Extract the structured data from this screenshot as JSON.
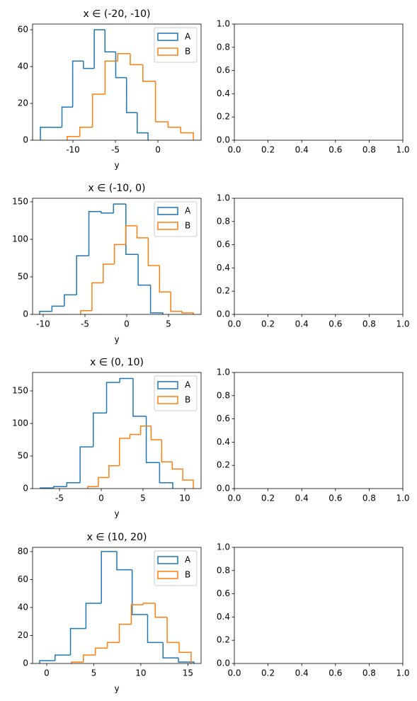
{
  "chart_data": [
    {
      "type": "histogram",
      "title": "x ∈ (-20, -10)",
      "xlabel": "y",
      "legend": "upper right",
      "xlim": [
        -14.75,
        5.08
      ],
      "ylim": [
        0,
        63.08
      ],
      "xticks": [
        -10,
        -5,
        0
      ],
      "yticks": [
        0,
        20,
        40,
        60
      ],
      "series": [
        {
          "name": "A",
          "color": "#1f77b4",
          "bins": [
            -13.83,
            -12.56,
            -11.29,
            -10.03,
            -8.76,
            -7.49,
            -6.23,
            -4.96,
            -3.69,
            -2.43,
            -1.16
          ],
          "values": [
            7,
            7,
            18,
            43,
            39,
            60,
            48,
            34,
            15,
            4
          ]
        },
        {
          "name": "B",
          "color": "#ff7f0e",
          "bins": [
            -10.67,
            -9.19,
            -7.7,
            -6.22,
            -4.73,
            -3.25,
            -1.77,
            -0.28,
            1.2,
            2.69,
            4.17
          ],
          "values": [
            2,
            7,
            25,
            43,
            47,
            41,
            32,
            10,
            7,
            4
          ]
        }
      ]
    },
    {
      "type": "empty",
      "xlim": [
        0,
        1
      ],
      "ylim": [
        0,
        1
      ],
      "xticks": [
        {
          "value": 0,
          "label": "0.0"
        },
        {
          "value": 0.2,
          "label": "0.2"
        },
        {
          "value": 0.4,
          "label": "0.4"
        },
        {
          "value": 0.6,
          "label": "0.6"
        },
        {
          "value": 0.8,
          "label": "0.8"
        },
        {
          "value": 1,
          "label": "1.0"
        }
      ],
      "yticks": [
        {
          "value": 0,
          "label": "0.0"
        },
        {
          "value": 0.2,
          "label": "0.2"
        },
        {
          "value": 0.4,
          "label": "0.4"
        },
        {
          "value": 0.6,
          "label": "0.6"
        },
        {
          "value": 0.8,
          "label": "0.8"
        },
        {
          "value": 1,
          "label": "1.0"
        }
      ]
    },
    {
      "type": "histogram",
      "title": "x ∈ (-10, 0)",
      "xlabel": "y",
      "legend": "upper right",
      "xlim": [
        -11.27,
        8.9
      ],
      "ylim": [
        0,
        154.7
      ],
      "xticks": [
        -10,
        -5,
        0,
        5
      ],
      "yticks": [
        0,
        50,
        100,
        150
      ],
      "series": [
        {
          "name": "A",
          "color": "#1f77b4",
          "bins": [
            -10.42,
            -8.95,
            -7.47,
            -6.0,
            -4.53,
            -3.05,
            -1.58,
            -0.1,
            1.37,
            2.85,
            4.32
          ],
          "values": [
            4,
            11,
            26,
            78,
            137,
            135,
            147,
            80,
            39,
            2
          ]
        },
        {
          "name": "B",
          "color": "#ff7f0e",
          "bins": [
            -5.51,
            -4.16,
            -2.81,
            -1.47,
            -0.12,
            1.23,
            2.58,
            3.93,
            5.27,
            6.62,
            7.97
          ],
          "values": [
            5,
            42,
            67,
            93,
            118,
            102,
            65,
            30,
            4,
            2
          ]
        }
      ]
    },
    {
      "type": "empty",
      "xlim": [
        0,
        1
      ],
      "ylim": [
        0,
        1
      ],
      "xticks": [
        {
          "value": 0,
          "label": "0.0"
        },
        {
          "value": 0.2,
          "label": "0.2"
        },
        {
          "value": 0.4,
          "label": "0.4"
        },
        {
          "value": 0.6,
          "label": "0.6"
        },
        {
          "value": 0.8,
          "label": "0.8"
        },
        {
          "value": 1,
          "label": "1.0"
        }
      ],
      "yticks": [
        {
          "value": 0,
          "label": "0.0"
        },
        {
          "value": 0.2,
          "label": "0.2"
        },
        {
          "value": 0.4,
          "label": "0.4"
        },
        {
          "value": 0.6,
          "label": "0.6"
        },
        {
          "value": 0.8,
          "label": "0.8"
        },
        {
          "value": 1,
          "label": "1.0"
        }
      ]
    },
    {
      "type": "histogram",
      "title": "x ∈ (0, 10)",
      "xlabel": "y",
      "legend": "upper right",
      "xlim": [
        -8.22,
        11.95
      ],
      "ylim": [
        0,
        178.3
      ],
      "xticks": [
        -5,
        0,
        5,
        10
      ],
      "yticks": [
        0,
        50,
        100,
        150
      ],
      "series": [
        {
          "name": "A",
          "color": "#1f77b4",
          "bins": [
            -7.29,
            -5.7,
            -4.12,
            -2.53,
            -0.95,
            0.64,
            2.22,
            3.81,
            5.39,
            6.98,
            8.56
          ],
          "values": [
            1,
            3,
            9,
            64,
            116,
            163,
            169,
            111,
            40,
            9
          ]
        },
        {
          "name": "B",
          "color": "#ff7f0e",
          "bins": [
            -1.61,
            -0.35,
            0.92,
            2.18,
            3.44,
            4.71,
            5.97,
            7.23,
            8.5,
            9.76,
            11.02
          ],
          "values": [
            3,
            17,
            35,
            77,
            83,
            96,
            75,
            41,
            30,
            13
          ]
        }
      ]
    },
    {
      "type": "empty",
      "xlim": [
        0,
        1
      ],
      "ylim": [
        0,
        1
      ],
      "xticks": [
        {
          "value": 0,
          "label": "0.0"
        },
        {
          "value": 0.2,
          "label": "0.2"
        },
        {
          "value": 0.4,
          "label": "0.4"
        },
        {
          "value": 0.6,
          "label": "0.6"
        },
        {
          "value": 0.8,
          "label": "0.8"
        },
        {
          "value": 1,
          "label": "1.0"
        }
      ],
      "yticks": [
        {
          "value": 0,
          "label": "0.0"
        },
        {
          "value": 0.2,
          "label": "0.2"
        },
        {
          "value": 0.4,
          "label": "0.4"
        },
        {
          "value": 0.6,
          "label": "0.6"
        },
        {
          "value": 0.8,
          "label": "0.8"
        },
        {
          "value": 1,
          "label": "1.0"
        }
      ]
    },
    {
      "type": "histogram",
      "title": "x ∈ (10, 20)",
      "xlabel": "y",
      "legend": "upper right",
      "xlim": [
        -1.5,
        16.4
      ],
      "ylim": [
        0,
        83.0
      ],
      "xticks": [
        0,
        5,
        10,
        15
      ],
      "yticks": [
        0,
        20,
        40,
        60,
        80
      ],
      "series": [
        {
          "name": "A",
          "color": "#1f77b4",
          "bins": [
            -0.75,
            0.89,
            2.53,
            4.17,
            5.81,
            7.45,
            9.08,
            10.72,
            12.36,
            14.0,
            15.64
          ],
          "values": [
            2,
            6,
            25,
            43,
            80,
            67,
            35,
            15,
            4,
            1
          ]
        },
        {
          "name": "B",
          "color": "#ff7f0e",
          "bins": [
            2.63,
            3.9,
            5.17,
            6.44,
            7.71,
            8.99,
            10.26,
            11.53,
            12.8,
            14.07,
            15.34
          ],
          "values": [
            1,
            6,
            11,
            15,
            28,
            42,
            43,
            33,
            15,
            8
          ]
        }
      ]
    },
    {
      "type": "empty",
      "xlim": [
        0,
        1
      ],
      "ylim": [
        0,
        1
      ],
      "xticks": [
        {
          "value": 0,
          "label": "0.0"
        },
        {
          "value": 0.2,
          "label": "0.2"
        },
        {
          "value": 0.4,
          "label": "0.4"
        },
        {
          "value": 0.6,
          "label": "0.6"
        },
        {
          "value": 0.8,
          "label": "0.8"
        },
        {
          "value": 1,
          "label": "1.0"
        }
      ],
      "yticks": [
        {
          "value": 0,
          "label": "0.0"
        },
        {
          "value": 0.2,
          "label": "0.2"
        },
        {
          "value": 0.4,
          "label": "0.4"
        },
        {
          "value": 0.6,
          "label": "0.6"
        },
        {
          "value": 0.8,
          "label": "0.8"
        },
        {
          "value": 1,
          "label": "1.0"
        }
      ]
    }
  ]
}
